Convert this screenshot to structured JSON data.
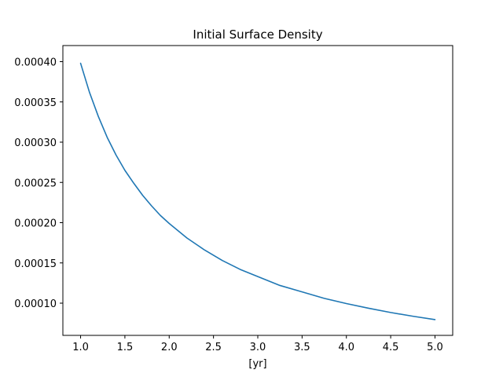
{
  "chart_data": {
    "type": "line",
    "title": "Initial Surface Density",
    "xlabel": "[yr]",
    "ylabel": "",
    "xlim": [
      0.8,
      5.2
    ],
    "ylim": [
      6e-05,
      0.00042
    ],
    "x_ticks": [
      1.0,
      1.5,
      2.0,
      2.5,
      3.0,
      3.5,
      4.0,
      4.5,
      5.0
    ],
    "x_tick_labels": [
      "1.0",
      "1.5",
      "2.0",
      "2.5",
      "3.0",
      "3.5",
      "4.0",
      "4.5",
      "5.0"
    ],
    "y_ticks": [
      0.0001,
      0.00015,
      0.0002,
      0.00025,
      0.0003,
      0.00035,
      0.0004
    ],
    "y_tick_labels": [
      "0.00010",
      "0.00015",
      "0.00020",
      "0.00025",
      "0.00030",
      "0.00035",
      "0.00040"
    ],
    "grid": false,
    "legend": "none",
    "series": [
      {
        "color": "#1f77b4",
        "x": [
          1.0,
          1.1,
          1.2,
          1.3,
          1.4,
          1.5,
          1.6,
          1.7,
          1.8,
          1.9,
          2.0,
          2.2,
          2.4,
          2.6,
          2.8,
          3.0,
          3.25,
          3.5,
          3.75,
          4.0,
          4.25,
          4.5,
          4.75,
          5.0
        ],
        "y": [
          0.000398,
          0.000362,
          0.000332,
          0.000306,
          0.000284,
          0.000265,
          0.000249,
          0.000234,
          0.000221,
          0.000209,
          0.000199,
          0.000181,
          0.000166,
          0.000153,
          0.000142,
          0.000133,
          0.000122,
          0.000114,
          0.000106,
          9.95e-05,
          9.37e-05,
          8.84e-05,
          8.38e-05,
          7.96e-05
        ]
      }
    ]
  }
}
